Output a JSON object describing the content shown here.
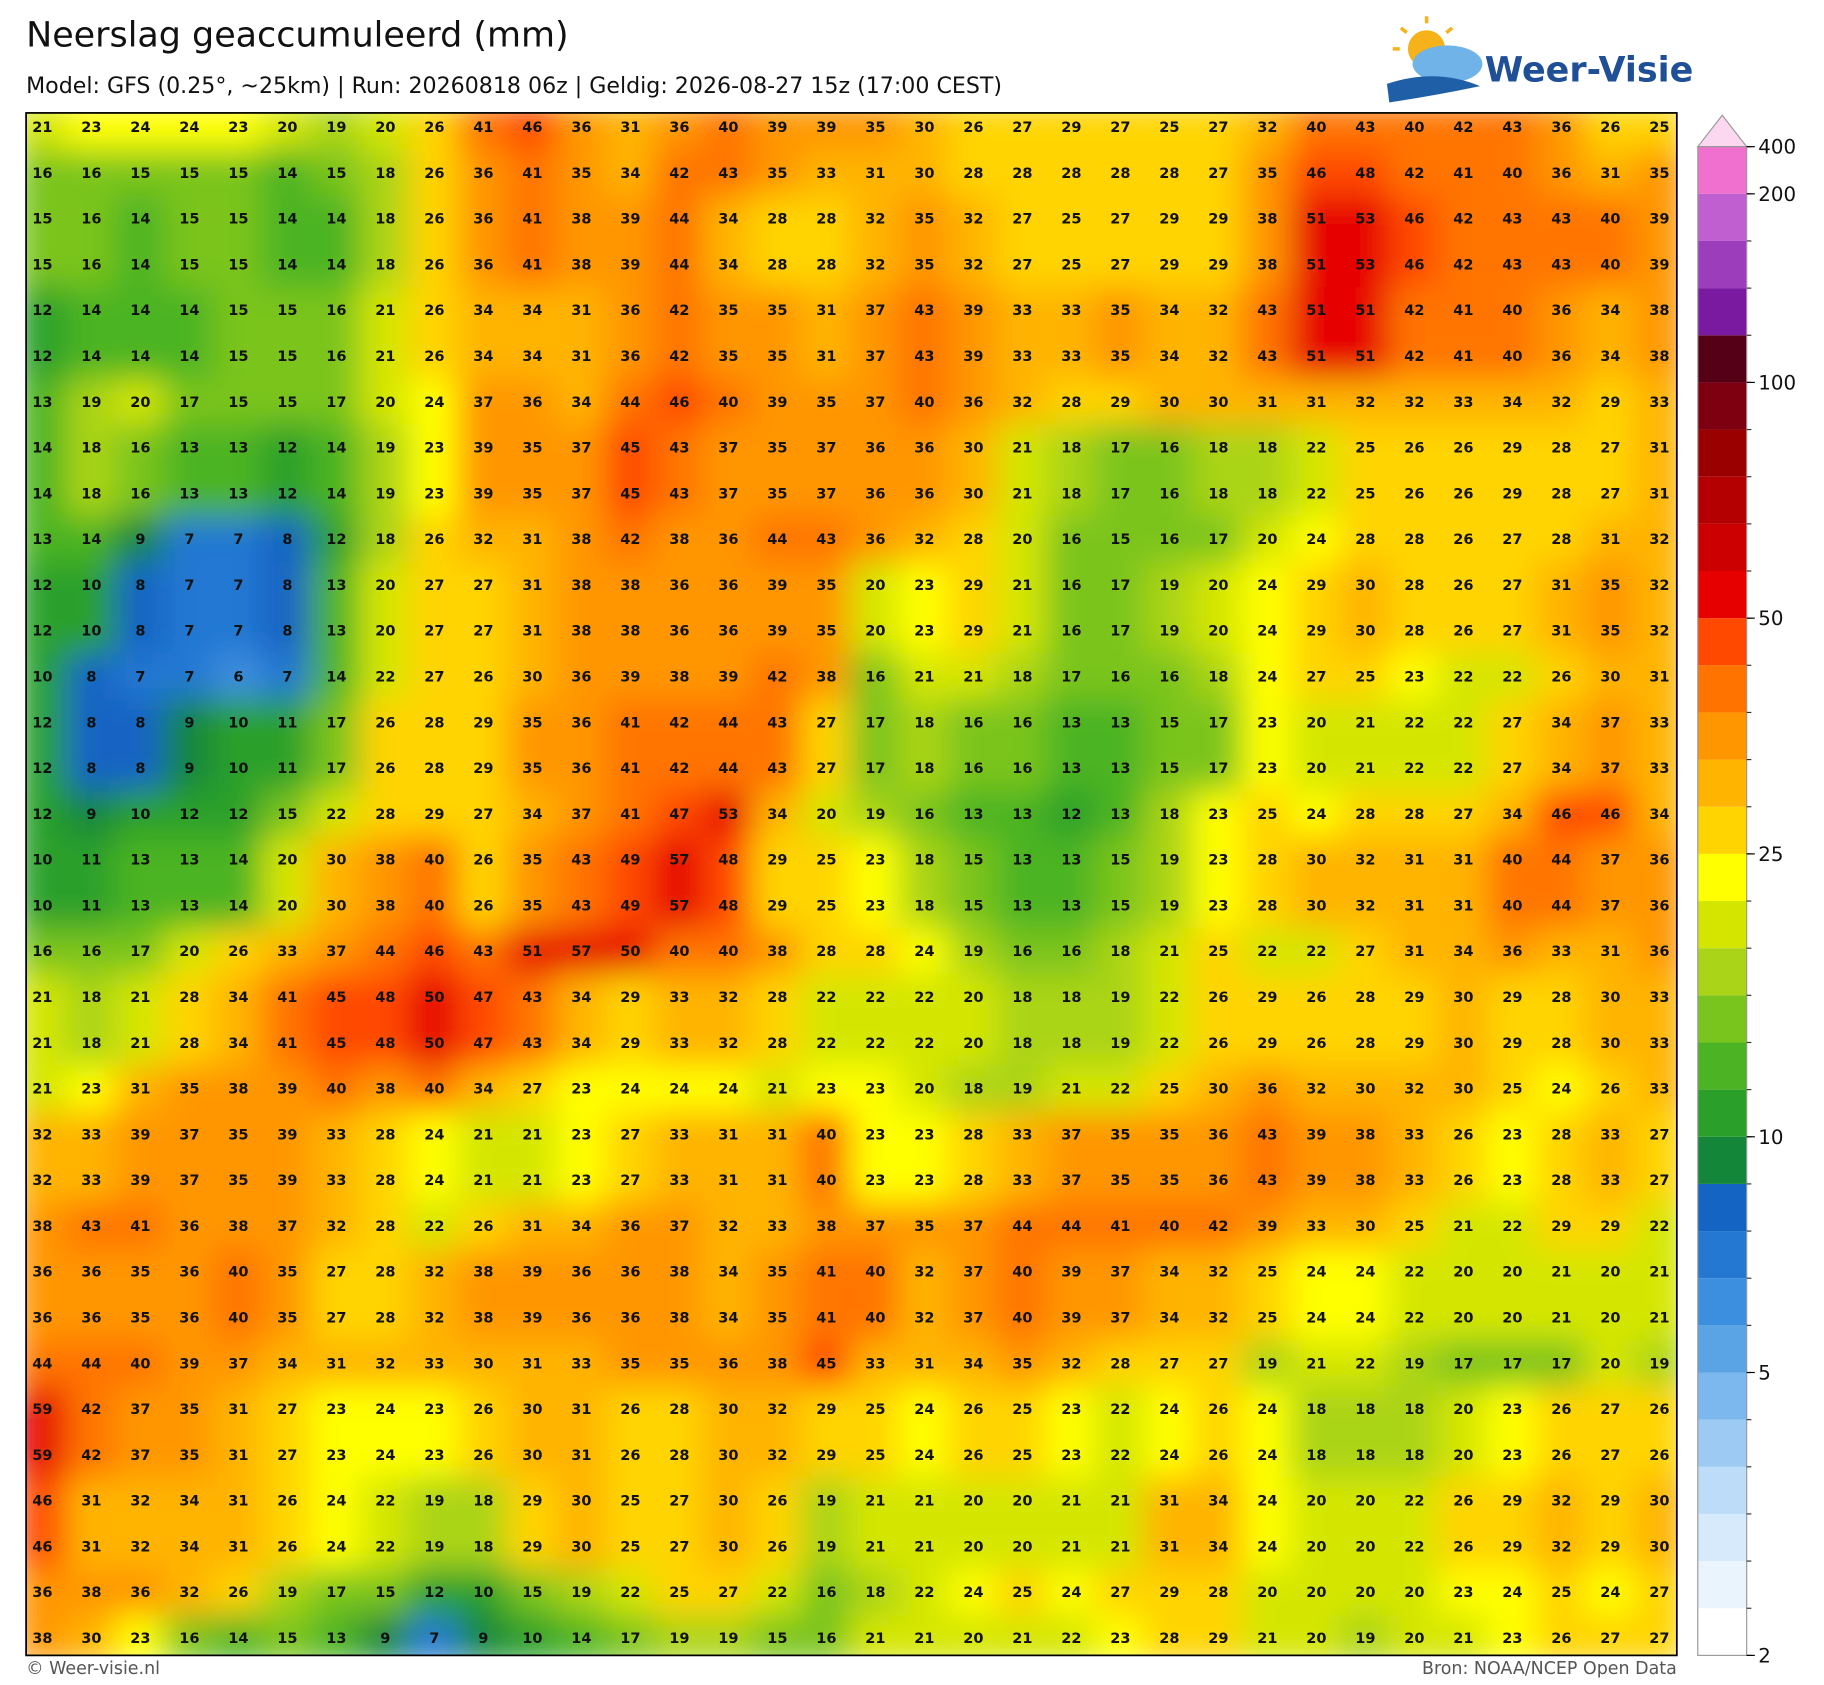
{
  "header": {
    "title": "Neerslag geaccumuleerd (mm)",
    "subtitle": "Model: GFS (0.25°, ~25km)  |  Run: 20260818 06z  |  Geldig: 2026-08-27 15z (17:00 CEST)",
    "logo": "Weer-Visie"
  },
  "map": {
    "grid": [
      [
        21,
        23,
        24,
        24,
        23,
        20,
        19,
        20,
        26,
        41,
        46,
        36,
        31,
        36,
        40,
        39,
        39,
        35,
        30,
        26,
        27,
        29,
        27,
        25,
        27,
        32,
        40,
        43,
        40,
        42,
        43,
        36,
        26,
        25
      ],
      [
        16,
        16,
        15,
        15,
        15,
        14,
        15,
        18,
        26,
        36,
        41,
        35,
        34,
        42,
        43,
        35,
        33,
        31,
        30,
        28,
        28,
        28,
        28,
        28,
        27,
        35,
        46,
        48,
        42,
        41,
        40,
        36,
        31,
        35
      ],
      [
        15,
        16,
        14,
        15,
        15,
        14,
        14,
        18,
        26,
        36,
        41,
        38,
        39,
        44,
        34,
        28,
        28,
        32,
        35,
        32,
        27,
        25,
        27,
        29,
        29,
        38,
        51,
        53,
        46,
        42,
        43,
        43,
        40,
        39
      ],
      [
        15,
        16,
        14,
        15,
        15,
        14,
        14,
        18,
        26,
        36,
        41,
        38,
        39,
        44,
        34,
        28,
        28,
        32,
        35,
        32,
        27,
        25,
        27,
        29,
        29,
        38,
        51,
        53,
        46,
        42,
        43,
        43,
        40,
        39
      ],
      [
        12,
        14,
        14,
        14,
        15,
        15,
        16,
        21,
        26,
        34,
        34,
        31,
        36,
        42,
        35,
        35,
        31,
        37,
        43,
        39,
        33,
        33,
        35,
        34,
        32,
        43,
        51,
        51,
        42,
        41,
        40,
        36,
        34,
        38
      ],
      [
        12,
        14,
        14,
        14,
        15,
        15,
        16,
        21,
        26,
        34,
        34,
        31,
        36,
        42,
        35,
        35,
        31,
        37,
        43,
        39,
        33,
        33,
        35,
        34,
        32,
        43,
        51,
        51,
        42,
        41,
        40,
        36,
        34,
        38
      ],
      [
        13,
        19,
        20,
        17,
        15,
        15,
        17,
        20,
        24,
        37,
        36,
        34,
        44,
        46,
        40,
        39,
        35,
        37,
        40,
        36,
        32,
        28,
        29,
        30,
        30,
        31,
        31,
        32,
        32,
        33,
        34,
        32,
        29,
        33
      ],
      [
        14,
        18,
        16,
        13,
        13,
        12,
        14,
        19,
        23,
        39,
        35,
        37,
        45,
        43,
        37,
        35,
        37,
        36,
        36,
        30,
        21,
        18,
        17,
        16,
        18,
        18,
        22,
        25,
        26,
        26,
        29,
        28,
        27,
        31
      ],
      [
        14,
        18,
        16,
        13,
        13,
        12,
        14,
        19,
        23,
        39,
        35,
        37,
        45,
        43,
        37,
        35,
        37,
        36,
        36,
        30,
        21,
        18,
        17,
        16,
        18,
        18,
        22,
        25,
        26,
        26,
        29,
        28,
        27,
        31
      ],
      [
        13,
        14,
        9,
        7,
        7,
        8,
        12,
        18,
        26,
        32,
        31,
        38,
        42,
        38,
        36,
        44,
        43,
        36,
        32,
        28,
        20,
        16,
        15,
        16,
        17,
        20,
        24,
        28,
        28,
        26,
        27,
        28,
        31,
        32
      ],
      [
        12,
        10,
        8,
        7,
        7,
        8,
        13,
        20,
        27,
        27,
        31,
        38,
        38,
        36,
        36,
        39,
        35,
        20,
        23,
        29,
        21,
        16,
        17,
        19,
        20,
        24,
        29,
        30,
        28,
        26,
        27,
        31,
        35,
        32
      ],
      [
        12,
        10,
        8,
        7,
        7,
        8,
        13,
        20,
        27,
        27,
        31,
        38,
        38,
        36,
        36,
        39,
        35,
        20,
        23,
        29,
        21,
        16,
        17,
        19,
        20,
        24,
        29,
        30,
        28,
        26,
        27,
        31,
        35,
        32
      ],
      [
        10,
        8,
        7,
        7,
        6,
        7,
        14,
        22,
        27,
        26,
        30,
        36,
        39,
        38,
        39,
        42,
        38,
        16,
        21,
        21,
        18,
        17,
        16,
        16,
        18,
        24,
        27,
        25,
        23,
        22,
        22,
        26,
        30,
        31
      ],
      [
        12,
        8,
        8,
        9,
        10,
        11,
        17,
        26,
        28,
        29,
        35,
        36,
        41,
        42,
        44,
        43,
        27,
        17,
        18,
        16,
        16,
        13,
        13,
        15,
        17,
        23,
        20,
        21,
        22,
        22,
        27,
        34,
        37,
        33
      ],
      [
        12,
        8,
        8,
        9,
        10,
        11,
        17,
        26,
        28,
        29,
        35,
        36,
        41,
        42,
        44,
        43,
        27,
        17,
        18,
        16,
        16,
        13,
        13,
        15,
        17,
        23,
        20,
        21,
        22,
        22,
        27,
        34,
        37,
        33
      ],
      [
        12,
        9,
        10,
        12,
        12,
        15,
        22,
        28,
        29,
        27,
        34,
        37,
        41,
        47,
        53,
        34,
        20,
        19,
        16,
        13,
        13,
        12,
        13,
        18,
        23,
        25,
        24,
        28,
        28,
        27,
        34,
        46,
        46,
        34
      ],
      [
        10,
        11,
        13,
        13,
        14,
        20,
        30,
        38,
        40,
        26,
        35,
        43,
        49,
        57,
        48,
        29,
        25,
        23,
        18,
        15,
        13,
        13,
        15,
        19,
        23,
        28,
        30,
        32,
        31,
        31,
        40,
        44,
        37,
        36
      ],
      [
        10,
        11,
        13,
        13,
        14,
        20,
        30,
        38,
        40,
        26,
        35,
        43,
        49,
        57,
        48,
        29,
        25,
        23,
        18,
        15,
        13,
        13,
        15,
        19,
        23,
        28,
        30,
        32,
        31,
        31,
        40,
        44,
        37,
        36
      ],
      [
        16,
        16,
        17,
        20,
        26,
        33,
        37,
        44,
        46,
        43,
        51,
        57,
        50,
        40,
        40,
        38,
        28,
        28,
        24,
        19,
        16,
        16,
        18,
        21,
        25,
        22,
        22,
        27,
        31,
        34,
        36,
        33,
        31,
        36
      ],
      [
        21,
        18,
        21,
        28,
        34,
        41,
        45,
        48,
        50,
        47,
        43,
        34,
        29,
        33,
        32,
        28,
        22,
        22,
        22,
        20,
        18,
        18,
        19,
        22,
        26,
        29,
        26,
        28,
        29,
        30,
        29,
        28,
        30,
        33
      ],
      [
        21,
        18,
        21,
        28,
        34,
        41,
        45,
        48,
        50,
        47,
        43,
        34,
        29,
        33,
        32,
        28,
        22,
        22,
        22,
        20,
        18,
        18,
        19,
        22,
        26,
        29,
        26,
        28,
        29,
        30,
        29,
        28,
        30,
        33
      ],
      [
        21,
        23,
        31,
        35,
        38,
        39,
        40,
        38,
        40,
        34,
        27,
        23,
        24,
        24,
        24,
        21,
        23,
        23,
        20,
        18,
        19,
        21,
        22,
        25,
        30,
        36,
        32,
        30,
        32,
        30,
        25,
        24,
        26,
        33
      ],
      [
        32,
        33,
        39,
        37,
        35,
        39,
        33,
        28,
        24,
        21,
        21,
        23,
        27,
        33,
        31,
        31,
        40,
        23,
        23,
        28,
        33,
        37,
        35,
        35,
        36,
        43,
        39,
        38,
        33,
        26,
        23,
        28,
        33,
        27
      ],
      [
        32,
        33,
        39,
        37,
        35,
        39,
        33,
        28,
        24,
        21,
        21,
        23,
        27,
        33,
        31,
        31,
        40,
        23,
        23,
        28,
        33,
        37,
        35,
        35,
        36,
        43,
        39,
        38,
        33,
        26,
        23,
        28,
        33,
        27
      ],
      [
        38,
        43,
        41,
        36,
        38,
        37,
        32,
        28,
        22,
        26,
        31,
        34,
        36,
        37,
        32,
        33,
        38,
        37,
        35,
        37,
        44,
        44,
        41,
        40,
        42,
        39,
        33,
        30,
        25,
        21,
        22,
        29,
        29,
        22
      ],
      [
        36,
        36,
        35,
        36,
        40,
        35,
        27,
        28,
        32,
        38,
        39,
        36,
        36,
        38,
        34,
        35,
        41,
        40,
        32,
        37,
        40,
        39,
        37,
        34,
        32,
        25,
        24,
        24,
        22,
        20,
        20,
        21,
        20,
        21
      ],
      [
        36,
        36,
        35,
        36,
        40,
        35,
        27,
        28,
        32,
        38,
        39,
        36,
        36,
        38,
        34,
        35,
        41,
        40,
        32,
        37,
        40,
        39,
        37,
        34,
        32,
        25,
        24,
        24,
        22,
        20,
        20,
        21,
        20,
        21
      ],
      [
        44,
        44,
        40,
        39,
        37,
        34,
        31,
        32,
        33,
        30,
        31,
        33,
        35,
        35,
        36,
        38,
        45,
        33,
        31,
        34,
        35,
        32,
        28,
        27,
        27,
        19,
        21,
        22,
        19,
        17,
        17,
        17,
        20,
        19
      ],
      [
        59,
        42,
        37,
        35,
        31,
        27,
        23,
        24,
        23,
        26,
        30,
        31,
        26,
        28,
        30,
        32,
        29,
        25,
        24,
        26,
        25,
        23,
        22,
        24,
        26,
        24,
        18,
        18,
        18,
        20,
        23,
        26,
        27,
        26
      ],
      [
        59,
        42,
        37,
        35,
        31,
        27,
        23,
        24,
        23,
        26,
        30,
        31,
        26,
        28,
        30,
        32,
        29,
        25,
        24,
        26,
        25,
        23,
        22,
        24,
        26,
        24,
        18,
        18,
        18,
        20,
        23,
        26,
        27,
        26
      ],
      [
        46,
        31,
        32,
        34,
        31,
        26,
        24,
        22,
        19,
        18,
        29,
        30,
        25,
        27,
        30,
        26,
        19,
        21,
        21,
        20,
        20,
        21,
        21,
        31,
        34,
        24,
        20,
        20,
        22,
        26,
        29,
        32,
        29,
        30
      ],
      [
        46,
        31,
        32,
        34,
        31,
        26,
        24,
        22,
        19,
        18,
        29,
        30,
        25,
        27,
        30,
        26,
        19,
        21,
        21,
        20,
        20,
        21,
        21,
        31,
        34,
        24,
        20,
        20,
        22,
        26,
        29,
        32,
        29,
        30
      ],
      [
        36,
        38,
        36,
        32,
        26,
        19,
        17,
        15,
        12,
        10,
        15,
        19,
        22,
        25,
        27,
        22,
        16,
        18,
        22,
        24,
        25,
        24,
        27,
        29,
        28,
        20,
        20,
        20,
        20,
        23,
        24,
        25,
        24,
        27
      ],
      [
        38,
        30,
        23,
        16,
        14,
        15,
        13,
        9,
        7,
        9,
        10,
        14,
        17,
        19,
        19,
        15,
        16,
        21,
        21,
        20,
        21,
        22,
        23,
        28,
        29,
        21,
        20,
        19,
        20,
        21,
        23,
        26,
        27,
        27
      ]
    ]
  },
  "colorbar": {
    "levels": [
      2,
      2.5,
      3,
      3.5,
      4,
      4.5,
      5,
      6,
      7,
      8,
      9,
      10,
      12.5,
      15,
      17.5,
      20,
      22.5,
      25,
      30,
      35,
      40,
      45,
      50,
      60,
      70,
      80,
      90,
      100,
      125,
      150,
      175,
      200,
      400
    ],
    "colors": [
      "#ffffff",
      "#eaf4fd",
      "#d6eafb",
      "#bcdcf8",
      "#9ccaf3",
      "#7cb8ee",
      "#5aa4e6",
      "#3c8ede",
      "#2478d2",
      "#1464c4",
      "#14863a",
      "#2aa02a",
      "#4cb424",
      "#7ac41e",
      "#aad418",
      "#d4e600",
      "#ffff00",
      "#ffd400",
      "#ffb400",
      "#ff9600",
      "#ff7400",
      "#ff4800",
      "#e60000",
      "#cc0000",
      "#b40000",
      "#9a0000",
      "#7e0010",
      "#560018",
      "#7a1aa0",
      "#9c3ebc",
      "#c060d0",
      "#f070d0"
    ],
    "ticks": [
      2,
      5,
      10,
      25,
      50,
      100,
      200,
      400
    ]
  },
  "footer": {
    "left": "© Weer-visie.nl",
    "right": "Bron: NOAA/NCEP Open Data"
  }
}
